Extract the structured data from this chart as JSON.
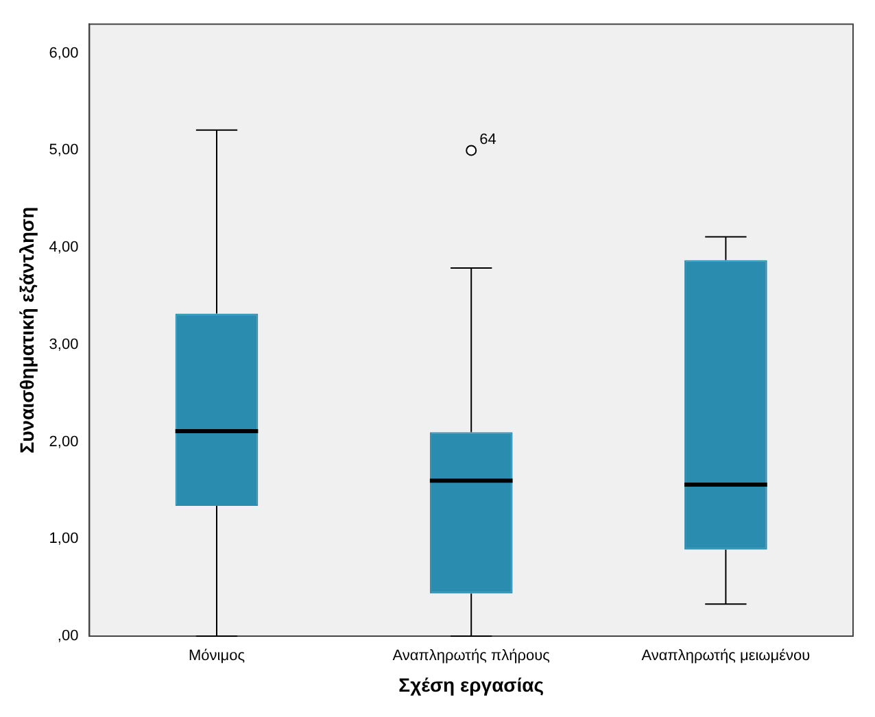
{
  "chart_data": {
    "type": "box",
    "xlabel": "Σχέση εργασίας",
    "ylabel": "Συναισθηματική εξάντληση",
    "categories": [
      "Μόνιμος",
      "Αναπληρωτής πλήρους",
      "Αναπληρωτής μειωμένου"
    ],
    "boxes": [
      {
        "low": 0,
        "q1": 1.34,
        "median": 2.11,
        "q3": 3.32,
        "high": 5.21
      },
      {
        "low": 0,
        "q1": 0.44,
        "median": 1.6,
        "q3": 2.1,
        "high": 3.79,
        "outliers": [
          5.0
        ]
      },
      {
        "low": 0.33,
        "q1": 0.89,
        "median": 1.56,
        "q3": 3.87,
        "high": 4.11
      }
    ],
    "color": "#2a8db0",
    "ylim": [
      0,
      6.3
    ],
    "yticks": [
      {
        "value": 0,
        "label": ",00"
      },
      {
        "value": 1,
        "label": "1,00"
      },
      {
        "value": 2,
        "label": "2,00"
      },
      {
        "value": 3,
        "label": "3,00"
      },
      {
        "value": 4,
        "label": "4,00"
      },
      {
        "value": 5,
        "label": "5,00"
      },
      {
        "value": 6,
        "label": "6,00"
      }
    ],
    "annotations": [
      "64"
    ],
    "grid": false,
    "legend": false
  }
}
